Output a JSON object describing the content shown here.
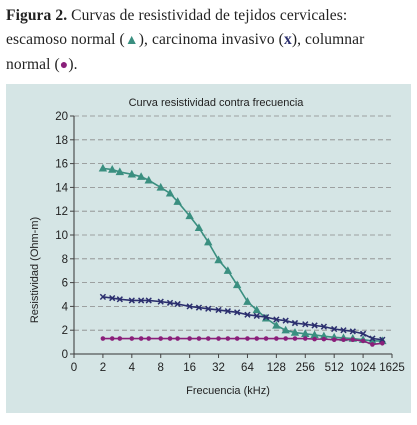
{
  "caption": {
    "label": "Figura 2.",
    "text_1": "Curvas de resistividad de tejidos cervicales: escamoso normal (",
    "sym_1": "▲",
    "text_2": "), carcinoma invasivo (",
    "sym_2": "x",
    "text_3": "), columnar normal (",
    "sym_3": "●",
    "text_4": ")."
  },
  "chart_data": {
    "type": "line",
    "title": "Curva resistividad contra frecuencia",
    "xlabel": "Frecuencia (kHz)",
    "ylabel": "Resistividad (Ohm-m)",
    "x_scale": "log2",
    "x_tick_labels": [
      "0",
      "2",
      "4",
      "8",
      "16",
      "32",
      "64",
      "128",
      "256",
      "512",
      "1024",
      "1625"
    ],
    "y_ticks": [
      0,
      2,
      4,
      6,
      8,
      10,
      12,
      14,
      16,
      18,
      20
    ],
    "ylim": [
      0,
      20
    ],
    "grid": "horizontal dashed",
    "x": [
      2,
      2.5,
      3,
      4,
      5,
      6,
      8,
      10,
      12,
      16,
      20,
      25,
      32,
      40,
      50,
      64,
      80,
      100,
      128,
      160,
      200,
      256,
      320,
      400,
      512,
      640,
      800,
      1024,
      1280,
      1625
    ],
    "series": [
      {
        "marker": "triangle",
        "color": "#3a8f80",
        "values": [
          15.6,
          15.5,
          15.3,
          15.1,
          14.9,
          14.6,
          14.0,
          13.5,
          12.8,
          11.6,
          10.6,
          9.4,
          7.9,
          7.0,
          5.8,
          4.4,
          3.7,
          3.0,
          2.4,
          2.0,
          1.8,
          1.7,
          1.6,
          1.5,
          1.4,
          1.35,
          1.3,
          1.2,
          1.1,
          1.1
        ]
      },
      {
        "marker": "x",
        "color": "#2b2f6e",
        "values": [
          4.8,
          4.7,
          4.6,
          4.5,
          4.5,
          4.5,
          4.4,
          4.3,
          4.2,
          4.0,
          3.9,
          3.8,
          3.7,
          3.6,
          3.5,
          3.3,
          3.2,
          3.1,
          2.9,
          2.8,
          2.6,
          2.5,
          2.4,
          2.3,
          2.1,
          2.0,
          1.9,
          1.7,
          1.3,
          1.2
        ]
      },
      {
        "marker": "circle",
        "color": "#8a1f7a",
        "values": [
          1.3,
          1.3,
          1.3,
          1.3,
          1.3,
          1.3,
          1.3,
          1.3,
          1.3,
          1.3,
          1.3,
          1.3,
          1.3,
          1.3,
          1.3,
          1.3,
          1.3,
          1.3,
          1.3,
          1.3,
          1.3,
          1.3,
          1.25,
          1.25,
          1.2,
          1.2,
          1.2,
          1.1,
          0.8,
          0.9
        ]
      }
    ]
  }
}
